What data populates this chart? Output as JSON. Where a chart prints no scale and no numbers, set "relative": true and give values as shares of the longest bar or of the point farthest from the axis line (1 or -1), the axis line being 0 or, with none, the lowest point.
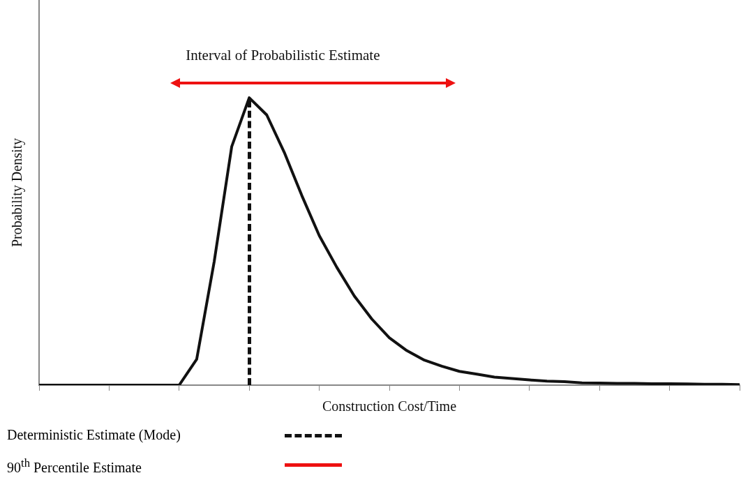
{
  "chart_data": {
    "type": "line",
    "relative": true,
    "xlabel": "Construction Cost/Time",
    "ylabel": "Probability Density",
    "tick_labels": false,
    "grid": false,
    "marker": "none",
    "line_style": "solid",
    "color": "#111111",
    "categories": [
      null,
      null,
      null,
      null,
      null,
      null,
      null,
      null,
      null,
      null,
      null,
      null,
      null,
      null,
      null,
      null,
      null,
      null,
      null,
      null,
      null,
      null,
      null,
      null,
      null,
      null,
      null,
      null,
      null,
      null,
      null,
      null,
      null,
      null,
      null,
      null,
      null,
      null,
      null,
      null,
      null
    ],
    "values": [
      0,
      0,
      0,
      0,
      0,
      0,
      0,
      0,
      0,
      0.09,
      0.43,
      0.83,
      1,
      0.94,
      0.81,
      0.66,
      0.52,
      0.41,
      0.31,
      0.23,
      0.165,
      0.12,
      0.087,
      0.066,
      0.048,
      0.038,
      0.028,
      0.023,
      0.018,
      0.014,
      0.012,
      0.008,
      0.007,
      0.006,
      0.006,
      0.005,
      0.005,
      0.004,
      0.003,
      0.003,
      0.002
    ],
    "annotations": [
      "Interval of Probabilistic Estimate",
      "Deterministic Estimate (Mode)",
      "90$^{th}$ Percentile Estimate"
    ]
  }
}
